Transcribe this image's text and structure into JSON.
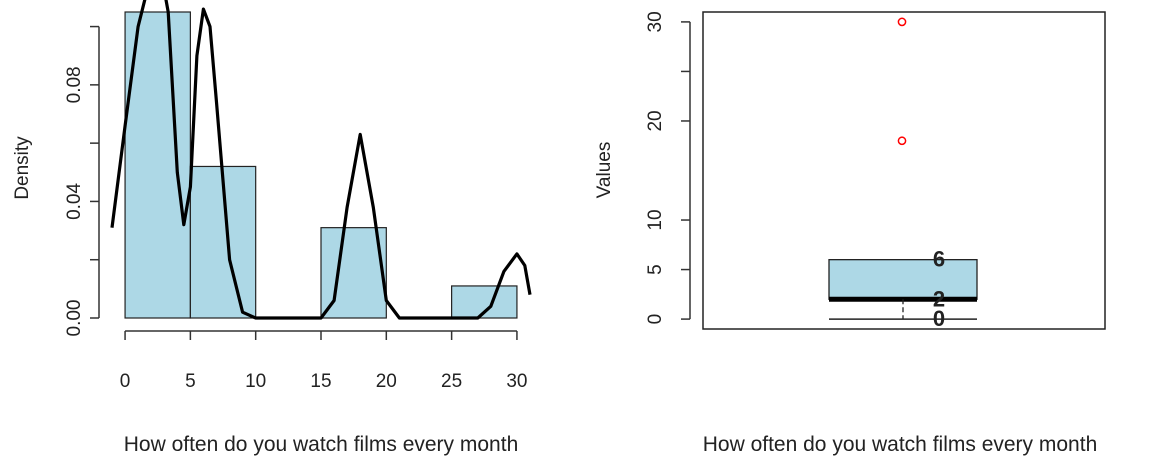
{
  "chart_data": [
    {
      "type": "histogram",
      "xlabel": "How often do you watch films every month",
      "ylabel": "Density",
      "xlim": [
        -1,
        31
      ],
      "ylim": [
        0,
        0.105
      ],
      "x_ticks": [
        "0",
        "5",
        "10",
        "15",
        "20",
        "25",
        "30"
      ],
      "y_ticks": [
        "0.00",
        "0.04",
        "0.08"
      ],
      "y_minor_ticks": [
        0.02,
        0.06,
        0.1
      ],
      "bins": [
        {
          "from": 0,
          "to": 5,
          "density": 0.105
        },
        {
          "from": 5,
          "to": 10,
          "density": 0.052
        },
        {
          "from": 10,
          "to": 15,
          "density": 0
        },
        {
          "from": 15,
          "to": 20,
          "density": 0.031
        },
        {
          "from": 20,
          "to": 25,
          "density": 0
        },
        {
          "from": 25,
          "to": 30,
          "density": 0.011
        }
      ],
      "density_curve": [
        [
          -1,
          0.031
        ],
        [
          0,
          0.066
        ],
        [
          1,
          0.1
        ],
        [
          2,
          0.118
        ],
        [
          2.7,
          0.12
        ],
        [
          3.3,
          0.105
        ],
        [
          4,
          0.05
        ],
        [
          4.5,
          0.032
        ],
        [
          5,
          0.045
        ],
        [
          5.5,
          0.09
        ],
        [
          6,
          0.106
        ],
        [
          6.5,
          0.1
        ],
        [
          7,
          0.074
        ],
        [
          8,
          0.02
        ],
        [
          9,
          0.002
        ],
        [
          10,
          0
        ],
        [
          15,
          0
        ],
        [
          16,
          0.006
        ],
        [
          17,
          0.038
        ],
        [
          18,
          0.063
        ],
        [
          19,
          0.038
        ],
        [
          20,
          0.006
        ],
        [
          21,
          0
        ],
        [
          27,
          0
        ],
        [
          28,
          0.004
        ],
        [
          29,
          0.016
        ],
        [
          30,
          0.022
        ],
        [
          30.6,
          0.018
        ],
        [
          31,
          0.008
        ]
      ],
      "bar_color": "#add8e6",
      "curve_color": "#000000"
    },
    {
      "type": "boxplot",
      "xlabel": "How often do you watch films every month",
      "ylabel": "Values",
      "ylim": [
        -1,
        31
      ],
      "y_ticks": [
        "0",
        "5",
        "10",
        "20",
        "30"
      ],
      "y_tick_values": [
        0,
        5,
        10,
        20,
        30
      ],
      "y_minor_ticks": [
        25
      ],
      "box": {
        "min": 0,
        "q1": 2,
        "median": 2,
        "q3": 6,
        "max": 6
      },
      "outliers": [
        18,
        30
      ],
      "value_labels": [
        {
          "text": "6",
          "value": 6
        },
        {
          "text": "2",
          "value": 2
        },
        {
          "text": "0",
          "value": 0
        }
      ],
      "box_color": "#add8e6",
      "outlier_color": "#ff0000"
    }
  ]
}
